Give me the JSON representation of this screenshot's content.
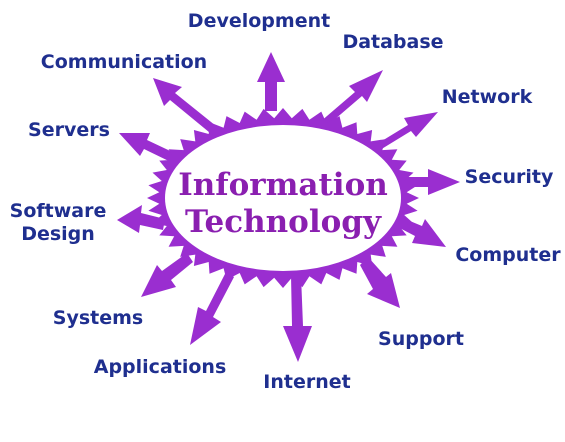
{
  "diagram": {
    "title_line1": "Information",
    "title_line2": "Technology",
    "color_accent": "#9a2ed0",
    "color_label": "#1f2f8f",
    "color_title": "#8a1fb0",
    "branches": [
      {
        "label": "Development"
      },
      {
        "label": "Database"
      },
      {
        "label": "Network"
      },
      {
        "label": "Security"
      },
      {
        "label": "Computer"
      },
      {
        "label": "Support"
      },
      {
        "label": "Internet"
      },
      {
        "label": "Applications"
      },
      {
        "label": "Systems"
      },
      {
        "label": "Software",
        "label2": "Design"
      },
      {
        "label": "Servers"
      },
      {
        "label": "Communication"
      }
    ]
  }
}
